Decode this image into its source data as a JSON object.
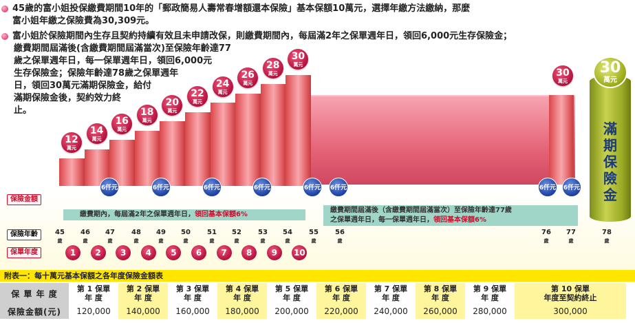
{
  "intro": {
    "line1": "45歲的富小姐投保繳費期間10年的「郵政簡易人壽常春增額還本保險」基本保額10萬元，選擇年繳方法繳納，那麼",
    "line1b": "富小姐年繳之保險費為30,309元。",
    "line2": "富小姐於保險期間內生存且契約持續有效且未申請改保，則繳費期間內，每屆滿2年之保單週年日，領回6,000元生存保險金；",
    "line2b": "繳費期間屆滿後(含繳費期間屆滿當次)至保險年齡達77",
    "line2c": "歲之保單週年日，每一保單週年日，領回6,000元",
    "line2d": "生存保險金；保險年齡達78歲之保單週年",
    "line2e": "日，領回30萬元滿期保險金，給付",
    "line2f": "滿期保險金後，契約效力終",
    "line2g": "止。"
  },
  "chart": {
    "amounts": [
      "12",
      "14",
      "16",
      "18",
      "20",
      "22",
      "24",
      "26",
      "28",
      "30"
    ],
    "unit": "萬元",
    "late_amount": "30",
    "maturity_amount": "30",
    "maturity_unit": "萬元",
    "maturity_label": "滿期保險金",
    "survival_benefit": "6仟元",
    "label_amount": "保險金額",
    "label_age": "保險年齡",
    "label_year": "保單年度",
    "arrow1": "繳費期內，每屆滿2年之保單週年日，",
    "arrow1_red": "領回基本保額6%",
    "arrow2a": "繳費期間屆滿後（含繳費期間屆滿當次）至保險年齡達77歲",
    "arrow2b": "之保單週年日，每一保單週年日，",
    "arrow2_red": "領回基本保額6%",
    "ages": [
      "45",
      "46",
      "47",
      "48",
      "49",
      "50",
      "51",
      "52",
      "53",
      "54",
      "55",
      "56",
      "76",
      "77",
      "78"
    ],
    "age_unit": "歲",
    "years": [
      "1",
      "2",
      "3",
      "4",
      "5",
      "6",
      "7",
      "8",
      "9",
      "10"
    ]
  },
  "table": {
    "title": "附表一：每十萬元基本保額之各年度保險金額表",
    "row1_label": "保 單 年 度",
    "row2_label": "保險金額(元)",
    "headers": [
      [
        "第 1 保單",
        "年 度"
      ],
      [
        "第 2 保單",
        "年 度"
      ],
      [
        "第 3 保單",
        "年 度"
      ],
      [
        "第 4 保單",
        "年 度"
      ],
      [
        "第 5 保單",
        "年 度"
      ],
      [
        "第 6 保單",
        "年 度"
      ],
      [
        "第 7 保單",
        "年 度"
      ],
      [
        "第 8 保單",
        "年 度"
      ],
      [
        "第 9 保單",
        "年 度"
      ],
      [
        "第 10 保單",
        "年度至契約終止"
      ]
    ],
    "values": [
      "120,000",
      "140,000",
      "160,000",
      "180,000",
      "200,000",
      "220,000",
      "240,000",
      "260,000",
      "280,000",
      "300,000"
    ]
  }
}
